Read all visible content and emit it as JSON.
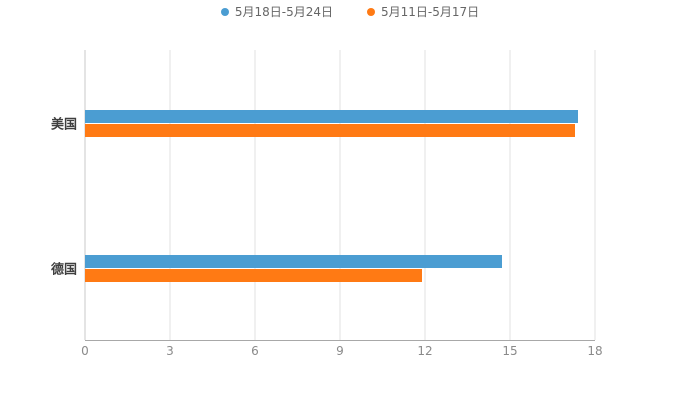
{
  "chart_data": {
    "type": "bar",
    "orientation": "horizontal",
    "title": "",
    "xlabel": "",
    "ylabel": "",
    "categories": [
      "美国",
      "德国"
    ],
    "series": [
      {
        "name": "5月18日-5月24日",
        "color": "#4b9dd2",
        "values": [
          17.4,
          14.7
        ]
      },
      {
        "name": "5月11日-5月17日",
        "color": "#ff7a14",
        "values": [
          17.3,
          11.9
        ]
      }
    ],
    "xlim": [
      0,
      18
    ],
    "x_ticks": [
      0,
      3,
      6,
      9,
      12,
      15,
      18
    ],
    "grid": "vertical-gridlines-on",
    "legend_position": "top-center",
    "background": "#ffffff",
    "colors": {
      "gridline": "#e2e2e2",
      "axis_line": "#a8a8a8",
      "tick_text": "#8a8a8a",
      "category_text": "#3f3f3f",
      "legend_text": "#666666"
    }
  }
}
